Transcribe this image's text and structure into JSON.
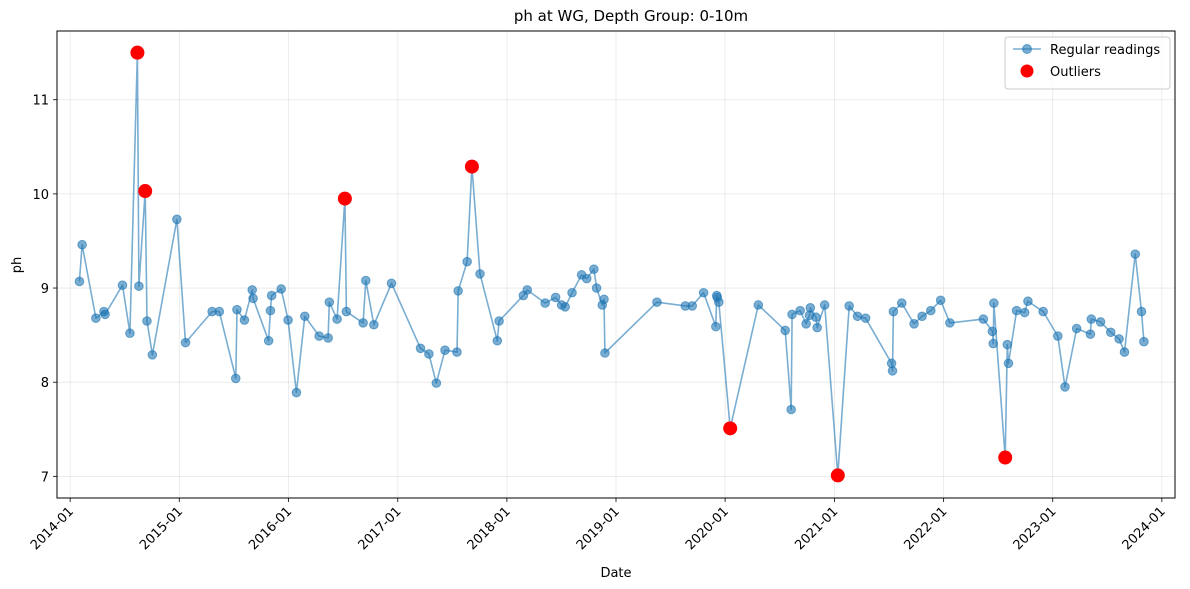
{
  "chart_data": {
    "type": "line",
    "title": "ph at WG, Depth Group: 0-10m",
    "xlabel": "Date",
    "ylabel": "ph",
    "xlim": [
      "2013-11-18",
      "2024-02-14"
    ],
    "ylim": [
      6.77,
      11.73
    ],
    "x_ticks": [
      "2014-01",
      "2015-01",
      "2016-01",
      "2017-01",
      "2018-01",
      "2019-01",
      "2020-01",
      "2021-01",
      "2022-01",
      "2023-01",
      "2024-01"
    ],
    "y_ticks": [
      7,
      8,
      9,
      10,
      11
    ],
    "grid": true,
    "legend_position": "top-right",
    "colors": {
      "regular": "#1f77b4",
      "outlier": "#ff0000"
    },
    "series": [
      {
        "name": "Regular readings",
        "style": "line-marker",
        "points": [
          [
            "2014-02-01",
            9.07
          ],
          [
            "2014-02-10",
            9.46
          ],
          [
            "2014-03-28",
            8.68
          ],
          [
            "2014-04-24",
            8.75
          ],
          [
            "2014-04-28",
            8.72
          ],
          [
            "2014-06-25",
            9.03
          ],
          [
            "2014-07-20",
            8.52
          ],
          [
            "2014-08-14",
            11.5
          ],
          [
            "2014-08-19",
            9.02
          ],
          [
            "2014-09-09",
            10.03
          ],
          [
            "2014-09-15",
            8.65
          ],
          [
            "2014-10-03",
            8.29
          ],
          [
            "2014-12-24",
            9.73
          ],
          [
            "2015-01-22",
            8.42
          ],
          [
            "2015-04-21",
            8.75
          ],
          [
            "2015-05-15",
            8.75
          ],
          [
            "2015-07-09",
            8.04
          ],
          [
            "2015-07-13",
            8.77
          ],
          [
            "2015-08-07",
            8.66
          ],
          [
            "2015-09-02",
            8.98
          ],
          [
            "2015-09-05",
            8.89
          ],
          [
            "2015-10-27",
            8.44
          ],
          [
            "2015-11-02",
            8.76
          ],
          [
            "2015-11-06",
            8.92
          ],
          [
            "2015-12-08",
            8.99
          ],
          [
            "2015-12-31",
            8.66
          ],
          [
            "2016-01-28",
            7.89
          ],
          [
            "2016-02-25",
            8.7
          ],
          [
            "2016-04-13",
            8.49
          ],
          [
            "2016-05-13",
            8.47
          ],
          [
            "2016-05-17",
            8.85
          ],
          [
            "2016-06-12",
            8.67
          ],
          [
            "2016-07-08",
            9.95
          ],
          [
            "2016-07-13",
            8.75
          ],
          [
            "2016-09-07",
            8.63
          ],
          [
            "2016-09-16",
            9.08
          ],
          [
            "2016-10-13",
            8.61
          ],
          [
            "2016-12-11",
            9.05
          ],
          [
            "2017-03-18",
            8.36
          ],
          [
            "2017-04-15",
            8.3
          ],
          [
            "2017-05-10",
            7.99
          ],
          [
            "2017-06-08",
            8.34
          ],
          [
            "2017-07-18",
            8.32
          ],
          [
            "2017-07-22",
            8.97
          ],
          [
            "2017-08-21",
            9.28
          ],
          [
            "2017-09-06",
            10.29
          ],
          [
            "2017-10-03",
            9.15
          ],
          [
            "2017-11-30",
            8.44
          ],
          [
            "2017-12-06",
            8.65
          ],
          [
            "2018-02-25",
            8.92
          ],
          [
            "2018-03-10",
            8.98
          ],
          [
            "2018-05-09",
            8.84
          ],
          [
            "2018-06-13",
            8.9
          ],
          [
            "2018-07-03",
            8.82
          ],
          [
            "2018-07-15",
            8.8
          ],
          [
            "2018-08-07",
            8.95
          ],
          [
            "2018-09-08",
            9.14
          ],
          [
            "2018-09-25",
            9.1
          ],
          [
            "2018-10-19",
            9.2
          ],
          [
            "2018-10-28",
            9.0
          ],
          [
            "2018-11-16",
            8.82
          ],
          [
            "2018-11-22",
            8.88
          ],
          [
            "2018-11-25",
            8.31
          ],
          [
            "2019-05-18",
            8.85
          ],
          [
            "2019-08-21",
            8.81
          ],
          [
            "2019-09-13",
            8.81
          ],
          [
            "2019-10-21",
            8.95
          ],
          [
            "2019-12-01",
            8.59
          ],
          [
            "2019-12-04",
            8.92
          ],
          [
            "2019-12-06",
            8.9
          ],
          [
            "2019-12-11",
            8.85
          ],
          [
            "2020-01-18",
            7.51
          ],
          [
            "2020-04-21",
            8.82
          ],
          [
            "2020-07-20",
            8.55
          ],
          [
            "2020-08-09",
            7.71
          ],
          [
            "2020-08-12",
            8.72
          ],
          [
            "2020-09-08",
            8.76
          ],
          [
            "2020-09-28",
            8.62
          ],
          [
            "2020-10-09",
            8.71
          ],
          [
            "2020-10-12",
            8.79
          ],
          [
            "2020-10-31",
            8.69
          ],
          [
            "2020-11-04",
            8.58
          ],
          [
            "2020-11-29",
            8.82
          ],
          [
            "2021-01-12",
            7.01
          ],
          [
            "2021-02-19",
            8.81
          ],
          [
            "2021-03-19",
            8.7
          ],
          [
            "2021-04-15",
            8.68
          ],
          [
            "2021-07-11",
            8.2
          ],
          [
            "2021-07-14",
            8.12
          ],
          [
            "2021-07-17",
            8.75
          ],
          [
            "2021-08-14",
            8.84
          ],
          [
            "2021-09-24",
            8.62
          ],
          [
            "2021-10-21",
            8.7
          ],
          [
            "2021-11-19",
            8.76
          ],
          [
            "2021-12-22",
            8.87
          ],
          [
            "2022-01-22",
            8.63
          ],
          [
            "2022-05-14",
            8.67
          ],
          [
            "2022-06-13",
            8.54
          ],
          [
            "2022-06-16",
            8.41
          ],
          [
            "2022-06-18",
            8.84
          ],
          [
            "2022-07-26",
            7.2
          ],
          [
            "2022-08-02",
            8.4
          ],
          [
            "2022-08-06",
            8.2
          ],
          [
            "2022-09-02",
            8.76
          ],
          [
            "2022-09-29",
            8.74
          ],
          [
            "2022-10-10",
            8.86
          ],
          [
            "2022-11-30",
            8.75
          ],
          [
            "2023-01-18",
            8.49
          ],
          [
            "2023-02-11",
            7.95
          ],
          [
            "2023-03-22",
            8.57
          ],
          [
            "2023-05-07",
            8.51
          ],
          [
            "2023-05-10",
            8.67
          ],
          [
            "2023-06-10",
            8.64
          ],
          [
            "2023-07-14",
            8.53
          ],
          [
            "2023-08-11",
            8.46
          ],
          [
            "2023-08-29",
            8.32
          ],
          [
            "2023-10-04",
            9.36
          ],
          [
            "2023-10-25",
            8.75
          ],
          [
            "2023-11-02",
            8.43
          ]
        ]
      },
      {
        "name": "Outliers",
        "style": "marker",
        "points": [
          [
            "2014-08-14",
            11.5
          ],
          [
            "2014-09-09",
            10.03
          ],
          [
            "2016-07-08",
            9.95
          ],
          [
            "2017-09-06",
            10.29
          ],
          [
            "2020-01-18",
            7.51
          ],
          [
            "2021-01-12",
            7.01
          ],
          [
            "2022-07-26",
            7.2
          ]
        ]
      }
    ]
  }
}
